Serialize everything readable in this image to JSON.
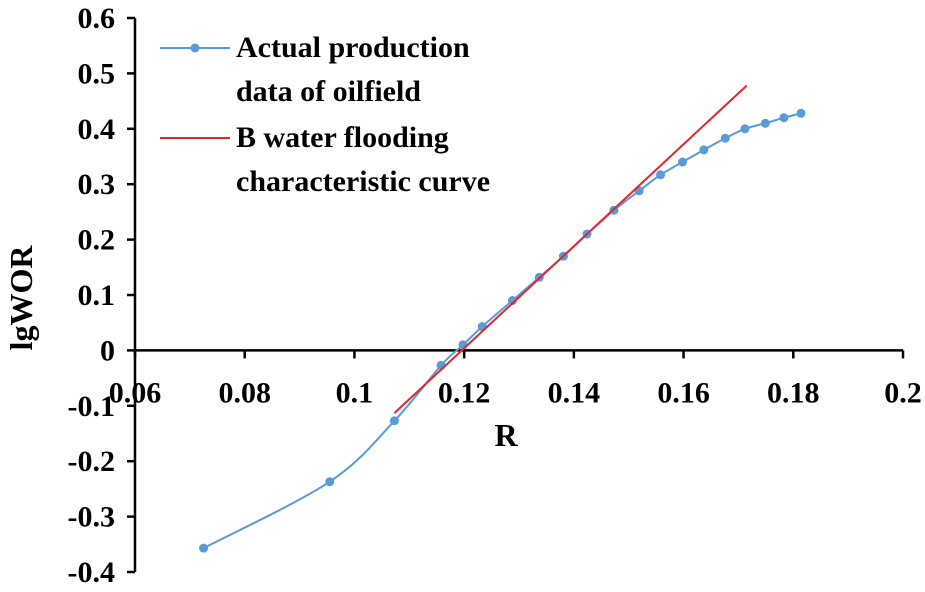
{
  "chart_data": {
    "type": "line",
    "title": "",
    "xlabel": "R",
    "ylabel": "lgWOR",
    "xlim": [
      0.06,
      0.2
    ],
    "ylim": [
      -0.4,
      0.6
    ],
    "x_ticks": [
      0.06,
      0.08,
      0.1,
      0.12,
      0.14,
      0.16,
      0.18,
      0.2
    ],
    "x_tick_labels": [
      "0.06",
      "0.08",
      "0.1",
      "0.12",
      "0.14",
      "0.16",
      "0.18",
      "0.2"
    ],
    "y_ticks": [
      0.6,
      0.5,
      0.4,
      0.3,
      0.2,
      0.1,
      0,
      -0.1,
      -0.2,
      -0.3,
      -0.4
    ],
    "y_tick_labels": [
      "0.6",
      "0.5",
      "0.4",
      "0.3",
      "0.2",
      "0.1",
      "0",
      "-0.1",
      "-0.2",
      "-0.3",
      "-0.4"
    ],
    "grid": false,
    "legend_position": "top-left",
    "series": [
      {
        "name_lines": [
          "Actual production",
          "data of oilfield"
        ],
        "color": "#5B9BD5",
        "marker": "circle",
        "smooth": true,
        "x": [
          0.0725,
          0.0955,
          0.1073,
          0.1158,
          0.1198,
          0.1233,
          0.1288,
          0.1337,
          0.1381,
          0.1424,
          0.1473,
          0.1519,
          0.1558,
          0.1598,
          0.1637,
          0.1676,
          0.1712,
          0.1749,
          0.1783,
          0.1814
        ],
        "y": [
          -0.357,
          -0.237,
          -0.127,
          -0.027,
          0.01,
          0.043,
          0.09,
          0.132,
          0.17,
          0.21,
          0.253,
          0.288,
          0.317,
          0.34,
          0.362,
          0.383,
          0.4,
          0.41,
          0.42,
          0.428
        ]
      },
      {
        "name_lines": [
          "B water flooding",
          "characteristic curve"
        ],
        "color": "#E3262A",
        "marker": "none",
        "smooth": false,
        "x": [
          0.1073,
          0.1715
        ],
        "y": [
          -0.113,
          0.478
        ]
      }
    ]
  }
}
